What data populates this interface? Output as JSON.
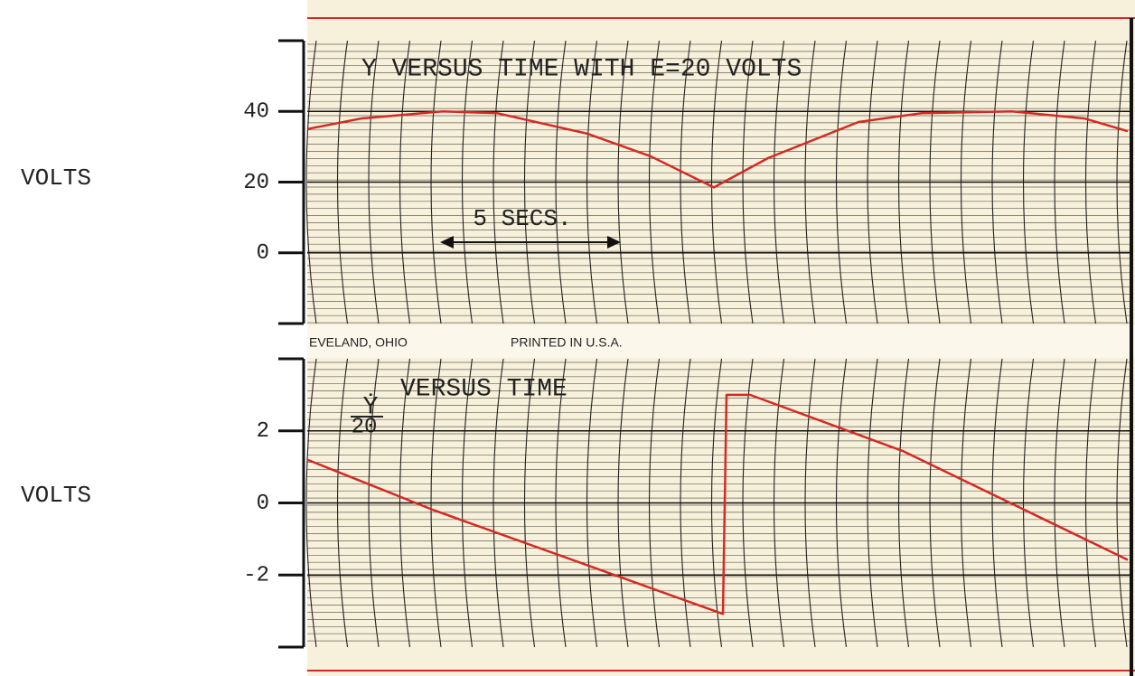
{
  "chart_data": [
    {
      "type": "line",
      "title": "Y VERSUS TIME WITH E=20 VOLTS",
      "ylabel": "VOLTS",
      "annotation": "5 SECS.",
      "x": [
        0,
        1.5,
        3.75,
        5.25,
        7.75,
        9.5,
        11.25,
        12.75,
        15.25,
        17,
        19.5,
        21.5,
        22.7
      ],
      "values": [
        35,
        38,
        40,
        39.5,
        33.7,
        27.3,
        18.5,
        26.8,
        37,
        39.5,
        40,
        38,
        34.4
      ],
      "color": "#d42a24",
      "xlim": [
        0,
        22.7
      ],
      "ylim": [
        -20,
        60
      ],
      "yticks": [
        0,
        20,
        40
      ]
    },
    {
      "type": "line",
      "title_numerator": "Ẏ",
      "title_denominator": "20",
      "title": "VERSUS TIME",
      "ylabel": "VOLTS",
      "x": [
        0,
        3.5,
        11.5,
        11.6,
        12.25,
        16.5,
        22.7
      ],
      "values": [
        1.2,
        -0.2,
        -3.08,
        3.0,
        3.0,
        1.43,
        -1.58
      ],
      "color": "#d42a24",
      "xlim": [
        0,
        22.7
      ],
      "ylim": [
        -4,
        4
      ],
      "yticks": [
        -2,
        0,
        2
      ]
    }
  ],
  "paper": {
    "left": "EVELAND, OHIO",
    "right": "PRINTED IN U.S.A."
  }
}
